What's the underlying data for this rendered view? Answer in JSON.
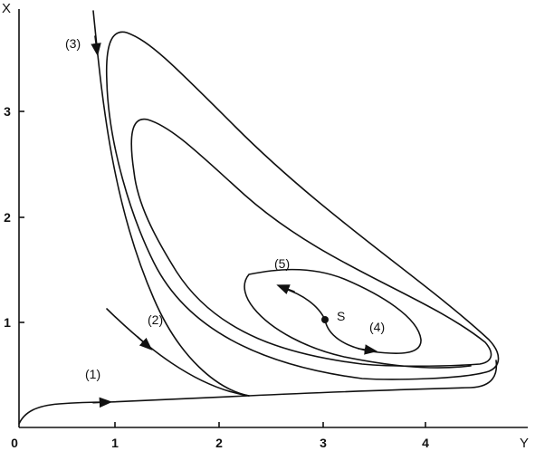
{
  "figure": {
    "axes": {
      "x_title": "Y",
      "y_title": "X",
      "x_ticks": [
        "0",
        "1",
        "2",
        "3",
        "4"
      ],
      "y_ticks": [
        "1",
        "2",
        "3"
      ]
    },
    "trajectory_labels": [
      "(1)",
      "(2)",
      "(3)",
      "(4)",
      "(5)"
    ],
    "stationary_point_label": "S"
  }
}
